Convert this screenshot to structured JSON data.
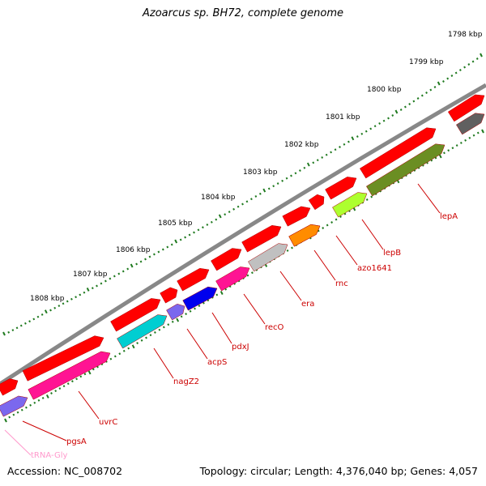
{
  "title": "Azoarcus sp. BH72, complete genome",
  "accession": "Accession: NC_008702",
  "summary": "Topology: circular; Length: 4,376,040 bp; Genes: 4,057",
  "colors": {
    "backbone": "#777777",
    "gene": "#ff0000",
    "tick": "#1f7a1f",
    "label_line": "#cc0000",
    "trna_label": "#ff99cc"
  },
  "ruler": [
    {
      "text": "1798 kbp"
    },
    {
      "text": "1799 kbp"
    },
    {
      "text": "1800 kbp"
    },
    {
      "text": "1801 kbp"
    },
    {
      "text": "1802 kbp"
    },
    {
      "text": "1803 kbp"
    },
    {
      "text": "1804 kbp"
    },
    {
      "text": "1805 kbp"
    },
    {
      "text": "1806 kbp"
    },
    {
      "text": "1807 kbp"
    },
    {
      "text": "1808 kbp"
    }
  ],
  "features": [
    {
      "label": "lepA",
      "color": "#6b8e23"
    },
    {
      "label": "lepB",
      "color": "#adff2f"
    },
    {
      "label": "azo1641",
      "color": "#ff8c00"
    },
    {
      "label": "rnc",
      "color": "#ff8c00"
    },
    {
      "label": "era",
      "color": "#c0c0c0"
    },
    {
      "label": "recO",
      "color": "#ff1493"
    },
    {
      "label": "pdxJ",
      "color": "#0000ee"
    },
    {
      "label": "acpS",
      "color": "#7b68ee"
    },
    {
      "label": "nagZ2",
      "color": "#00ced1"
    },
    {
      "label": "uvrC",
      "color": "#ff1493"
    },
    {
      "label": "pgsA",
      "color": "#7b68ee"
    },
    {
      "label": "tRNA-Gly",
      "color": "#ff99cc"
    }
  ]
}
